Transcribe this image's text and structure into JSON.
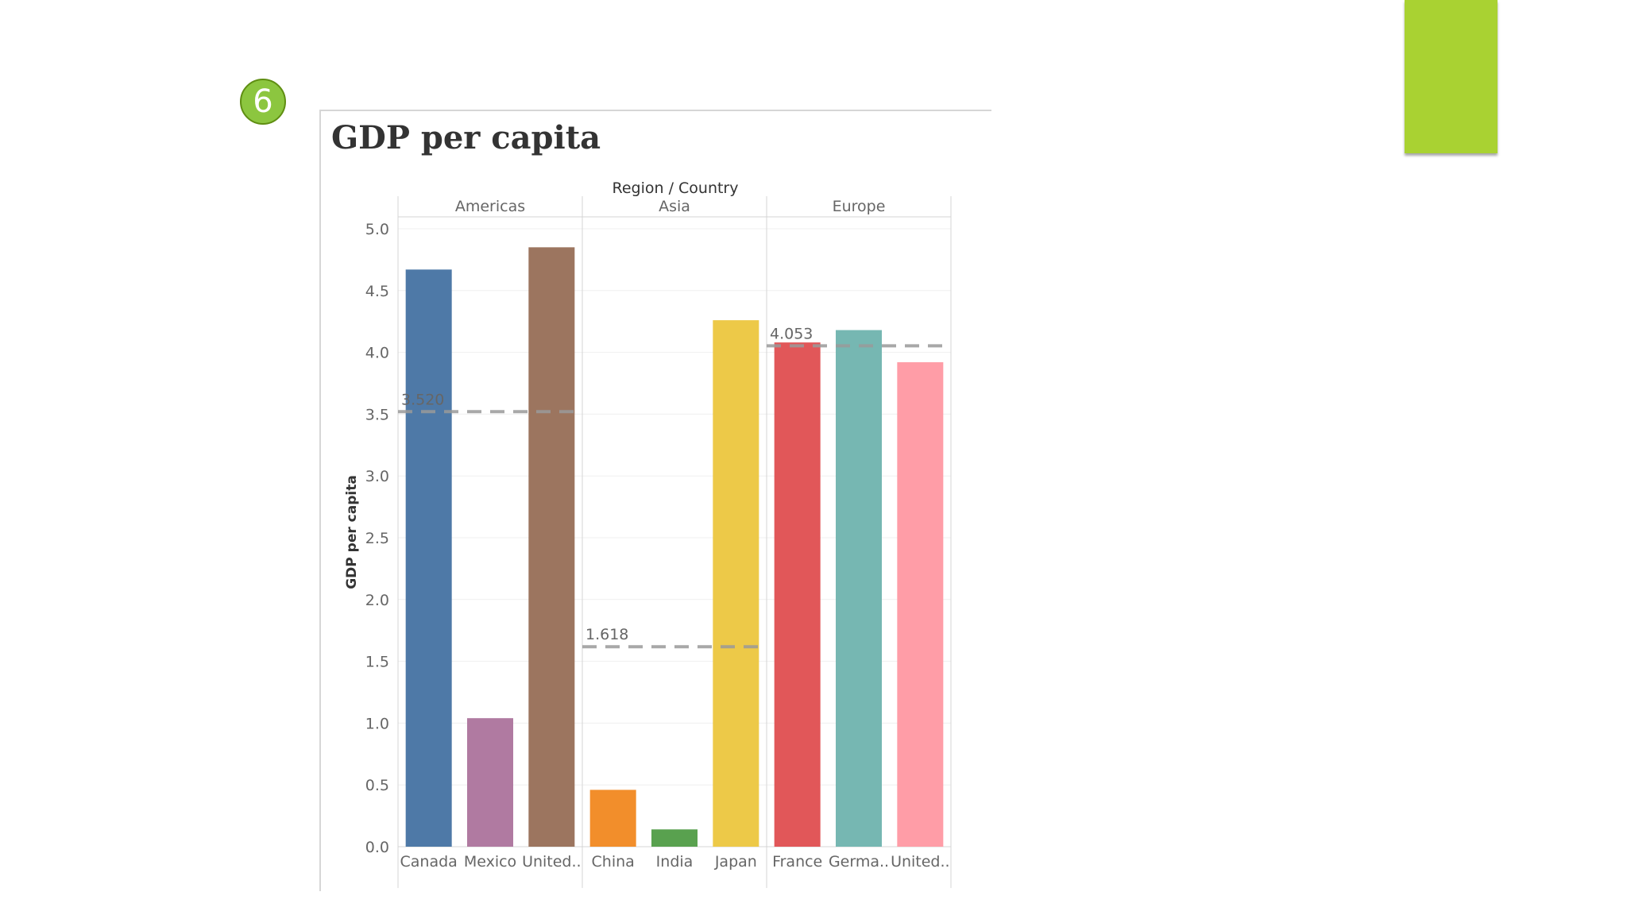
{
  "decor": {
    "step_number": "6",
    "badge_color": "#8cc63f",
    "tab_color": "#a9d232"
  },
  "chart_data": {
    "type": "bar",
    "title": "GDP per capita",
    "header_label": "Region / Country",
    "ylabel": "GDP per capita",
    "ylim": [
      0,
      5
    ],
    "yticks": [
      "0.0",
      "0.5",
      "1.0",
      "1.5",
      "2.0",
      "2.5",
      "3.0",
      "3.5",
      "4.0",
      "4.5",
      "5.0"
    ],
    "groups": [
      {
        "name": "Americas",
        "average": 3.52,
        "average_label": "3.520",
        "bars": [
          {
            "label": "Canada",
            "value": 4.67,
            "color": "#4e79a7"
          },
          {
            "label": "Mexico",
            "value": 1.04,
            "color": "#b07aa1"
          },
          {
            "label": "United..",
            "value": 4.85,
            "color": "#9c755f"
          }
        ]
      },
      {
        "name": "Asia",
        "average": 1.618,
        "average_label": "1.618",
        "bars": [
          {
            "label": "China",
            "value": 0.46,
            "color": "#f28e2b"
          },
          {
            "label": "India",
            "value": 0.14,
            "color": "#59a14f"
          },
          {
            "label": "Japan",
            "value": 4.26,
            "color": "#edc948"
          }
        ]
      },
      {
        "name": "Europe",
        "average": 4.053,
        "average_label": "4.053",
        "bars": [
          {
            "label": "France",
            "value": 4.08,
            "color": "#e15759"
          },
          {
            "label": "Germa..",
            "value": 4.18,
            "color": "#76b7b2"
          },
          {
            "label": "United..",
            "value": 3.92,
            "color": "#ff9da7"
          }
        ]
      }
    ]
  }
}
